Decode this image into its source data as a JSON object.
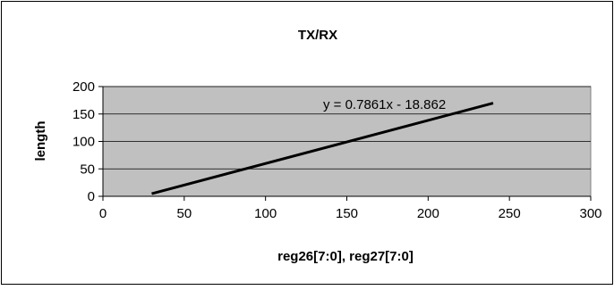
{
  "chart_data": {
    "type": "line",
    "title": "TX/RX",
    "xlabel": "reg26[7:0], reg27[7:0]",
    "ylabel": "length",
    "xlim": [
      0,
      300
    ],
    "ylim": [
      0,
      200
    ],
    "x_ticks": [
      0,
      50,
      100,
      150,
      200,
      250,
      300
    ],
    "y_ticks": [
      0,
      50,
      100,
      150,
      200
    ],
    "grid": "horizontal",
    "legend": "none",
    "series": [
      {
        "x": [
          30,
          240
        ],
        "y": [
          4.72,
          169.8
        ],
        "color": "#000000"
      }
    ],
    "trendline_equation": "y = 0.7861x - 18.862",
    "plot_background": "#c0c0c0"
  }
}
